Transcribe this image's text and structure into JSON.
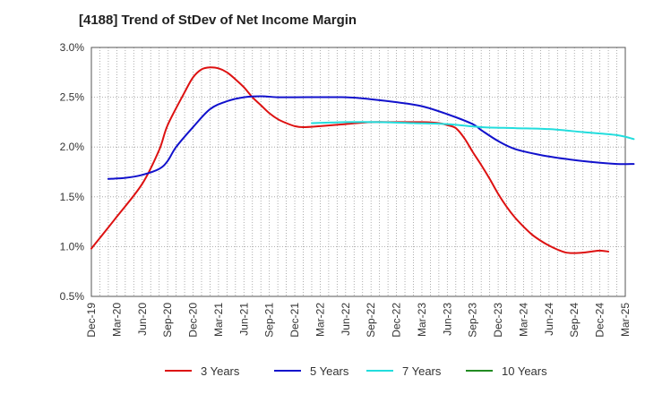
{
  "chart_data": {
    "type": "line",
    "title": "[4188]  Trend of StDev of Net Income Margin",
    "xlabel": "",
    "ylabel": "",
    "x_ticks": [
      "Dec-19",
      "Mar-20",
      "Jun-20",
      "Sep-20",
      "Dec-20",
      "Mar-21",
      "Jun-21",
      "Sep-21",
      "Dec-21",
      "Mar-22",
      "Jun-22",
      "Sep-22",
      "Dec-22",
      "Mar-23",
      "Jun-23",
      "Sep-23",
      "Dec-23",
      "Mar-24",
      "Jun-24",
      "Sep-24",
      "Dec-24",
      "Mar-25"
    ],
    "y_ticks": [
      "0.5%",
      "1.0%",
      "1.5%",
      "2.0%",
      "2.5%",
      "3.0%"
    ],
    "ylim": [
      0.5,
      3.0
    ],
    "grid": true,
    "legend_position": "bottom",
    "series": [
      {
        "name": "3 Years",
        "color": "#dd1111",
        "points": [
          [
            "Dec-19",
            0.98
          ],
          [
            "Mar-20",
            1.3
          ],
          [
            "Jun-20",
            1.63
          ],
          [
            "Aug-20",
            1.97
          ],
          [
            "Sep-20",
            2.22
          ],
          [
            "Nov-20",
            2.55
          ],
          [
            "Dec-20",
            2.7
          ],
          [
            "Jan-21",
            2.78
          ],
          [
            "Feb-21",
            2.8
          ],
          [
            "Mar-21",
            2.79
          ],
          [
            "Apr-21",
            2.75
          ],
          [
            "May-21",
            2.68
          ],
          [
            "Jun-21",
            2.6
          ],
          [
            "Jul-21",
            2.5
          ],
          [
            "Aug-21",
            2.42
          ],
          [
            "Sep-21",
            2.34
          ],
          [
            "Oct-21",
            2.28
          ],
          [
            "Nov-21",
            2.24
          ],
          [
            "Dec-21",
            2.21
          ],
          [
            "Jan-22",
            2.2
          ],
          [
            "Mar-22",
            2.21
          ],
          [
            "Jun-22",
            2.23
          ],
          [
            "Sep-22",
            2.25
          ],
          [
            "Dec-22",
            2.25
          ],
          [
            "Mar-23",
            2.25
          ],
          [
            "May-23",
            2.24
          ],
          [
            "Jun-23",
            2.22
          ],
          [
            "Jul-23",
            2.19
          ],
          [
            "Aug-23",
            2.09
          ],
          [
            "Sep-23",
            1.95
          ],
          [
            "Oct-23",
            1.82
          ],
          [
            "Nov-23",
            1.68
          ],
          [
            "Dec-23",
            1.53
          ],
          [
            "Jan-24",
            1.4
          ],
          [
            "Feb-24",
            1.29
          ],
          [
            "Mar-24",
            1.2
          ],
          [
            "Apr-24",
            1.12
          ],
          [
            "May-24",
            1.06
          ],
          [
            "Jun-24",
            1.01
          ],
          [
            "Jul-24",
            0.97
          ],
          [
            "Aug-24",
            0.94
          ],
          [
            "Sep-24",
            0.935
          ],
          [
            "Oct-24",
            0.94
          ],
          [
            "Nov-24",
            0.95
          ],
          [
            "Dec-24",
            0.96
          ],
          [
            "Jan-25",
            0.95
          ]
        ]
      },
      {
        "name": "5 Years",
        "color": "#1111cc",
        "points": [
          [
            "Feb-20",
            1.68
          ],
          [
            "Apr-20",
            1.69
          ],
          [
            "Jun-20",
            1.72
          ],
          [
            "Aug-20",
            1.78
          ],
          [
            "Sep-20",
            1.86
          ],
          [
            "Oct-20",
            2.0
          ],
          [
            "Dec-20",
            2.2
          ],
          [
            "Feb-21",
            2.38
          ],
          [
            "Apr-21",
            2.46
          ],
          [
            "Jun-21",
            2.5
          ],
          [
            "Aug-21",
            2.51
          ],
          [
            "Oct-21",
            2.5
          ],
          [
            "Dec-21",
            2.5
          ],
          [
            "Jun-22",
            2.5
          ],
          [
            "Sep-22",
            2.48
          ],
          [
            "Dec-22",
            2.45
          ],
          [
            "Mar-23",
            2.41
          ],
          [
            "Jun-23",
            2.33
          ],
          [
            "Sep-23",
            2.23
          ],
          [
            "Oct-23",
            2.17
          ],
          [
            "Dec-23",
            2.06
          ],
          [
            "Feb-24",
            1.98
          ],
          [
            "May-24",
            1.92
          ],
          [
            "Aug-24",
            1.88
          ],
          [
            "Nov-24",
            1.85
          ],
          [
            "Feb-25",
            1.83
          ],
          [
            "Apr-25",
            1.83
          ]
        ]
      },
      {
        "name": "7 Years",
        "color": "#22dddd",
        "points": [
          [
            "Feb-22",
            2.24
          ],
          [
            "Jun-22",
            2.25
          ],
          [
            "Oct-22",
            2.25
          ],
          [
            "Feb-23",
            2.24
          ],
          [
            "Jun-23",
            2.23
          ],
          [
            "Oct-23",
            2.2
          ],
          [
            "Feb-24",
            2.19
          ],
          [
            "Jun-24",
            2.18
          ],
          [
            "Oct-24",
            2.15
          ],
          [
            "Feb-25",
            2.12
          ],
          [
            "Apr-25",
            2.08
          ]
        ]
      },
      {
        "name": "10 Years",
        "color": "#228b22",
        "points": []
      }
    ]
  }
}
